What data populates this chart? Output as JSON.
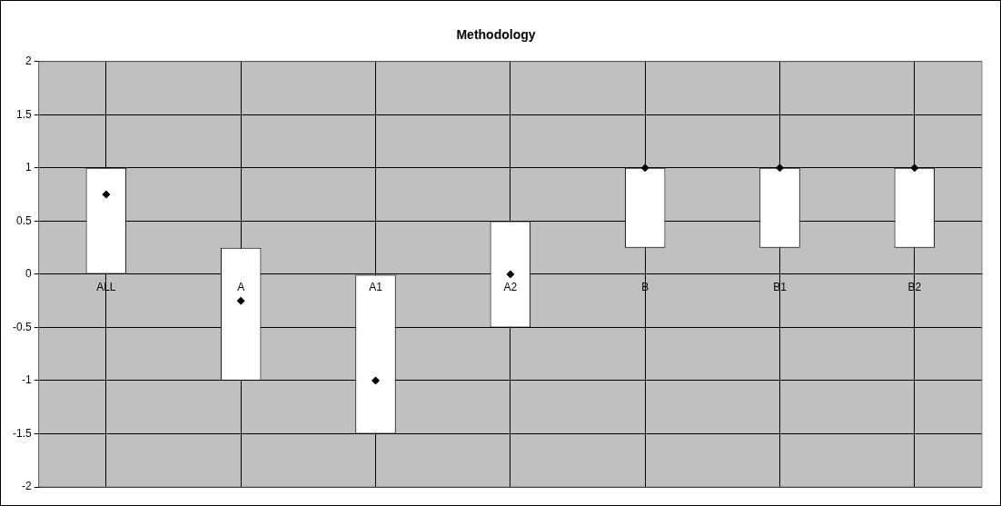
{
  "chart_data": {
    "type": "bar",
    "title": "Methodology",
    "categories": [
      "ALL",
      "A",
      "A1",
      "A2",
      "B",
      "B1",
      "B2"
    ],
    "ylim": [
      -2,
      2
    ],
    "yticks": [
      -2,
      -1.5,
      -1,
      -0.5,
      0,
      0.5,
      1,
      1.5,
      2
    ],
    "grid": true,
    "marker": "diamond",
    "series": [
      {
        "color": "#ffffff",
        "values": [
          1,
          1.25,
          1.5,
          1,
          0.75,
          0.75,
          0.75
        ],
        "base": [
          0,
          -1,
          -1.5,
          -0.5,
          0.25,
          0.25,
          0.25
        ]
      },
      {
        "type": "scatter",
        "color": "#000000",
        "x": [
          "ALL",
          "A",
          "A1",
          "A2",
          "B",
          "B1",
          "B2"
        ],
        "values": [
          0.75,
          -0.25,
          -1,
          0,
          1,
          1,
          1
        ]
      }
    ]
  }
}
